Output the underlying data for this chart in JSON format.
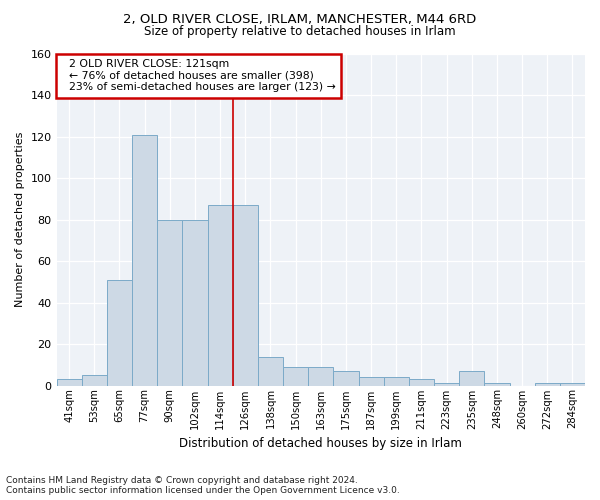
{
  "title1": "2, OLD RIVER CLOSE, IRLAM, MANCHESTER, M44 6RD",
  "title2": "Size of property relative to detached houses in Irlam",
  "xlabel": "Distribution of detached houses by size in Irlam",
  "ylabel": "Number of detached properties",
  "footnote": "Contains HM Land Registry data © Crown copyright and database right 2024.\nContains public sector information licensed under the Open Government Licence v3.0.",
  "bar_labels": [
    "41sqm",
    "53sqm",
    "65sqm",
    "77sqm",
    "90sqm",
    "102sqm",
    "114sqm",
    "126sqm",
    "138sqm",
    "150sqm",
    "163sqm",
    "175sqm",
    "187sqm",
    "199sqm",
    "211sqm",
    "223sqm",
    "235sqm",
    "248sqm",
    "260sqm",
    "272sqm",
    "284sqm"
  ],
  "bar_values": [
    3,
    5,
    51,
    121,
    80,
    80,
    87,
    87,
    14,
    9,
    9,
    7,
    4,
    4,
    3,
    1,
    7,
    1,
    0,
    1,
    1
  ],
  "bar_color": "#cdd9e5",
  "bar_edge_color": "#7baac8",
  "vline_x": 7.0,
  "vline_color": "#cc0000",
  "ylim": [
    0,
    160
  ],
  "yticks": [
    0,
    20,
    40,
    60,
    80,
    100,
    120,
    140,
    160
  ],
  "annotation_text": "  2 OLD RIVER CLOSE: 121sqm\n  ← 76% of detached houses are smaller (398)\n  23% of semi-detached houses are larger (123) →",
  "annotation_box_color": "white",
  "annotation_box_edge": "#cc0000",
  "plot_bg": "#eef2f7",
  "fig_bg": "white",
  "title1_fontsize": 9.5,
  "title2_fontsize": 8.5
}
